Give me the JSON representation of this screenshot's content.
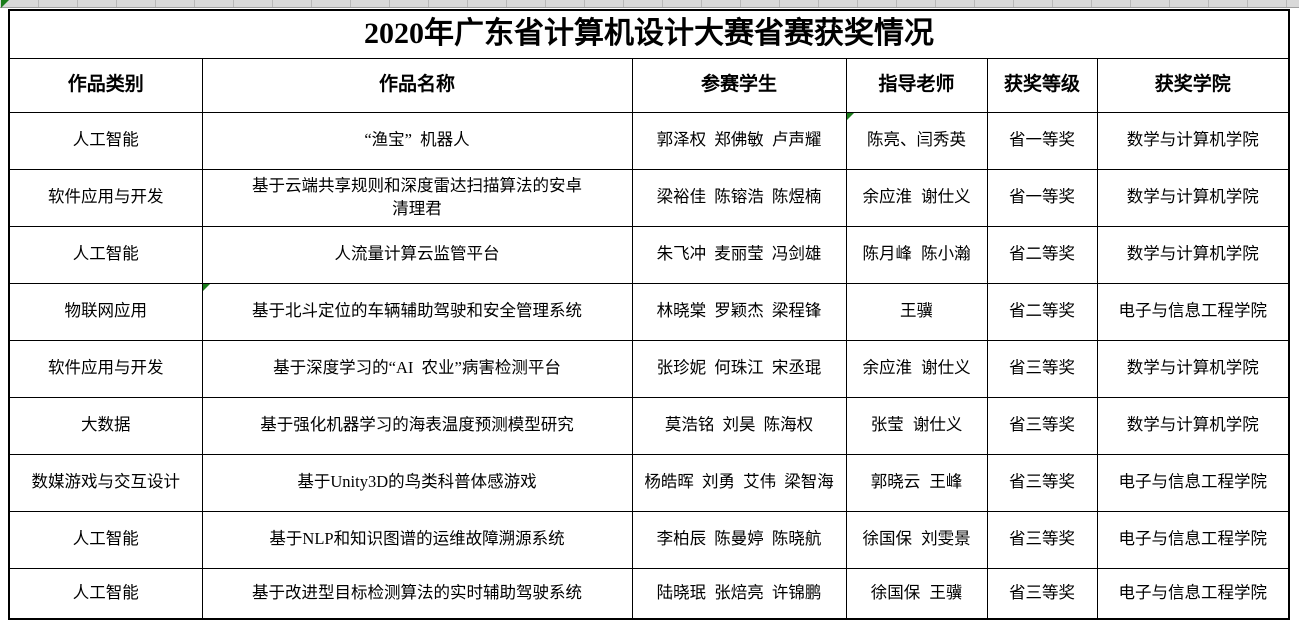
{
  "table": {
    "title": "2020年广东省计算机设计大赛省赛获奖情况",
    "columns": [
      "作品类别",
      "作品名称",
      "参赛学生",
      "指导老师",
      "获奖等级",
      "获奖学院"
    ],
    "field_order": [
      "category",
      "name",
      "students",
      "teachers",
      "award",
      "college"
    ],
    "rows": [
      {
        "category": "人工智能",
        "name": "“渔宝” 机器人",
        "students": "郭泽权 郑佛敏 卢声耀",
        "teachers": "陈亮、闫秀英",
        "award": "省一等奖",
        "college": "数学与计算机学院",
        "indicator": "teachers"
      },
      {
        "category": "软件应用与开发",
        "name": "基于云端共享规则和深度雷达扫描算法的安卓清理君",
        "students": "梁裕佳 陈镕浩 陈煜楠",
        "teachers": "余应淮 谢仕义",
        "award": "省一等奖",
        "college": "数学与计算机学院"
      },
      {
        "category": "人工智能",
        "name": "人流量计算云监管平台",
        "students": "朱飞冲 麦丽莹 冯剑雄",
        "teachers": "陈月峰 陈小瀚",
        "award": "省二等奖",
        "college": "数学与计算机学院"
      },
      {
        "category": "物联网应用",
        "name": "基于北斗定位的车辆辅助驾驶和安全管理系统",
        "students": "林晓棠 罗颖杰 梁程锋",
        "teachers": "王骥",
        "award": "省二等奖",
        "college": "电子与信息工程学院",
        "indicator": "name"
      },
      {
        "category": "软件应用与开发",
        "name": "基于深度学习的“AI 农业”病害检测平台",
        "students": "张珍妮 何珠江 宋丞琨",
        "teachers": "余应淮 谢仕义",
        "award": "省三等奖",
        "college": "数学与计算机学院"
      },
      {
        "category": "大数据",
        "name": "基于强化机器学习的海表温度预测模型研究",
        "students": "莫浩铭 刘昊 陈海权",
        "teachers": "张莹 谢仕义",
        "award": "省三等奖",
        "college": "数学与计算机学院"
      },
      {
        "category": "数媒游戏与交互设计",
        "name": "基于Unity3D的鸟类科普体感游戏",
        "students": "杨皓晖 刘勇 艾伟 梁智海",
        "teachers": "郭晓云 王峰",
        "award": "省三等奖",
        "college": "电子与信息工程学院"
      },
      {
        "category": "人工智能",
        "name": "基于NLP和知识图谱的运维故障溯源系统",
        "students": "李柏辰 陈曼婷 陈晓航",
        "teachers": "徐国保 刘雯景",
        "award": "省三等奖",
        "college": "电子与信息工程学院"
      },
      {
        "category": "人工智能",
        "name": "基于改进型目标检测算法的实时辅助驾驶系统",
        "students": "陆晓珉 张焙亮 许锦鹏",
        "teachers": "徐国保 王骥",
        "award": "省三等奖",
        "college": "电子与信息工程学院"
      }
    ],
    "colors": {
      "error_indicator": "#1b7d1b",
      "table_border": "#000000",
      "gridline_strip": "#d9d9d9"
    }
  }
}
